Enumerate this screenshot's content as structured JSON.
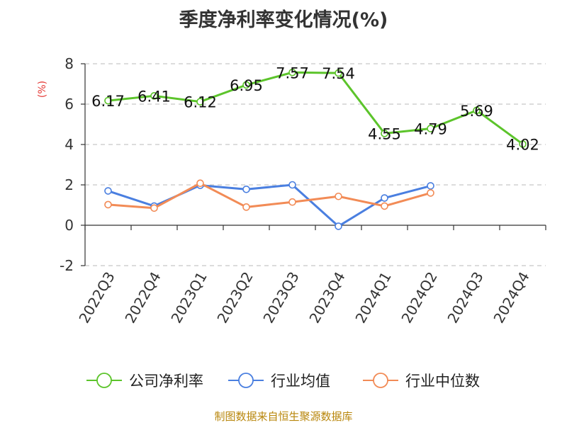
{
  "chart_data": {
    "type": "line",
    "title": "季度净利率变化情况(%)",
    "ylabel": "(%)",
    "ylim": [
      -2,
      8
    ],
    "yticks": [
      -2,
      0,
      2,
      4,
      6,
      8
    ],
    "grid": true,
    "legend_position": "bottom",
    "categories": [
      "2022Q3",
      "2022Q4",
      "2023Q1",
      "2023Q2",
      "2023Q3",
      "2023Q4",
      "2024Q1",
      "2024Q2",
      "2024Q3",
      "2024Q4"
    ],
    "series": [
      {
        "name": "公司净利率",
        "color": "#5cc42b",
        "values": [
          6.17,
          6.41,
          6.12,
          6.95,
          7.57,
          7.54,
          4.55,
          4.79,
          5.69,
          4.02
        ],
        "data_labels": [
          "6.17",
          "6.41",
          "6.12",
          "6.95",
          "7.57",
          "7.54",
          "4.55",
          "4.79",
          "5.69",
          "4.02"
        ]
      },
      {
        "name": "行业均值",
        "color": "#4a7fe0",
        "values": [
          1.7,
          0.95,
          1.98,
          1.78,
          2.0,
          -0.05,
          1.35,
          1.95,
          null,
          null
        ]
      },
      {
        "name": "行业中位数",
        "color": "#f28b56",
        "values": [
          1.02,
          0.85,
          2.08,
          0.9,
          1.15,
          1.43,
          0.95,
          1.6,
          null,
          null
        ]
      }
    ]
  },
  "source": "制图数据来自恒生聚源数据库"
}
